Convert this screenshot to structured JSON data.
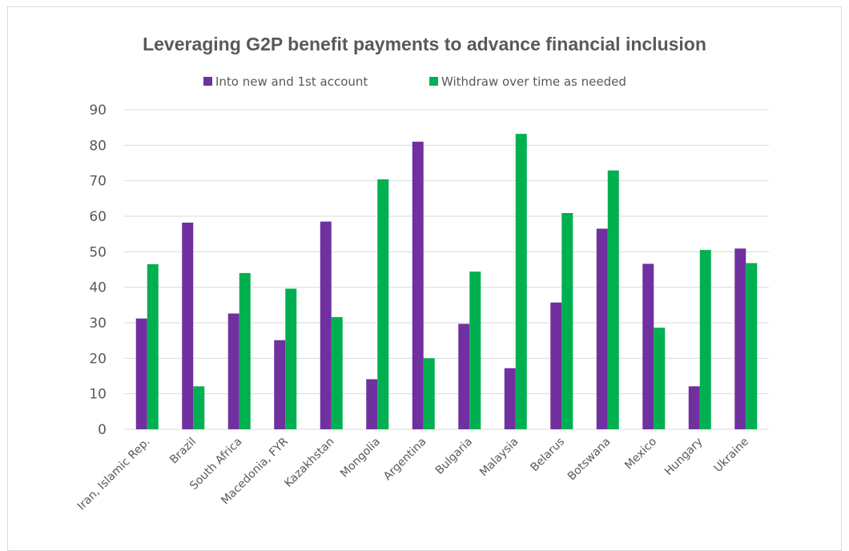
{
  "chart_data": {
    "type": "bar",
    "title": "Leveraging G2P benefit payments to advance financial inclusion",
    "xlabel": "",
    "ylabel": "",
    "ylim": [
      0,
      90
    ],
    "yticks": [
      0,
      10,
      20,
      30,
      40,
      50,
      60,
      70,
      80,
      90
    ],
    "grid": true,
    "legend_position": "top",
    "categories": [
      "Iran, Islamic Rep.",
      "Brazil",
      "South Africa",
      "Macedonia, FYR",
      "Kazakhstan",
      "Mongolia",
      "Argentina",
      "Bulgaria",
      "Malaysia",
      "Belarus",
      "Botswana",
      "Mexico",
      "Hungary",
      "Ukraine"
    ],
    "series": [
      {
        "name": "Into new and 1st account",
        "color": "#7030a0",
        "values": [
          31.2,
          58.2,
          32.6,
          25.1,
          58.5,
          14.1,
          81.0,
          29.7,
          17.2,
          35.7,
          56.5,
          46.6,
          12.1,
          50.9
        ]
      },
      {
        "name": "Withdraw over time as needed",
        "color": "#00b050",
        "values": [
          46.5,
          12.1,
          44.0,
          39.6,
          31.6,
          70.4,
          20.0,
          44.4,
          83.2,
          60.9,
          72.9,
          28.6,
          50.5,
          46.8
        ]
      }
    ]
  }
}
